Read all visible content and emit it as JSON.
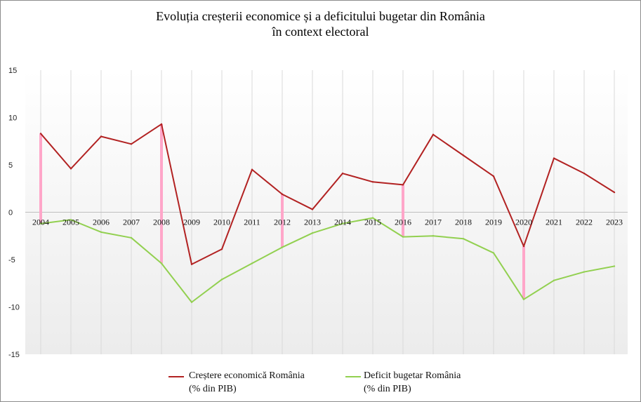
{
  "chart_data": {
    "type": "line",
    "title_line1": "Evoluția creșterii economice și a deficitului bugetar din România",
    "title_line2": "în context electoral",
    "x": [
      "2004",
      "2005",
      "2006",
      "2007",
      "2008",
      "2009",
      "2010",
      "2011",
      "2012",
      "2013",
      "2014",
      "2015",
      "2016",
      "2017",
      "2018",
      "2019",
      "2020",
      "2021",
      "2022",
      "2023"
    ],
    "ylim": [
      -15,
      15
    ],
    "yticks": [
      "15",
      "10",
      "5",
      "0",
      "-5",
      "-10",
      "-15"
    ],
    "grid": "vertical lines only",
    "legend": "bottom",
    "series": [
      {
        "name": "Creștere economică România",
        "name_line2": "(% din PIB)",
        "color": "#b22222",
        "values": [
          8.3,
          4.6,
          8.0,
          7.2,
          9.3,
          -5.5,
          -3.9,
          4.5,
          1.9,
          0.3,
          4.1,
          3.2,
          2.9,
          8.2,
          6.0,
          3.8,
          -3.6,
          5.7,
          4.1,
          2.1
        ]
      },
      {
        "name": "Deficit bugetar România",
        "name_line2": "(% din PIB)",
        "color": "#92d050",
        "values": [
          -1.2,
          -0.8,
          -2.1,
          -2.7,
          -5.4,
          -9.5,
          -7.1,
          -5.4,
          -3.7,
          -2.2,
          -1.2,
          -0.6,
          -2.6,
          -2.5,
          -2.8,
          -4.3,
          -9.2,
          -7.2,
          -6.3,
          -5.7
        ]
      }
    ],
    "highlighted_years": [
      "2004",
      "2008",
      "2012",
      "2016",
      "2020"
    ],
    "highlight_color": "#ffa6c9"
  }
}
